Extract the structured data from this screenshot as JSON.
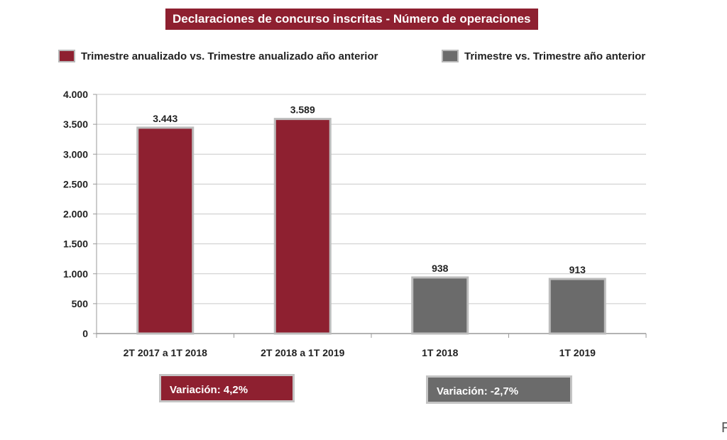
{
  "title": "Declaraciones de concurso inscritas - Número de operaciones",
  "colors": {
    "series_annual": "#8e2030",
    "series_quarter": "#6b6b6b",
    "title_bg": "#8e2030",
    "grid": "#c9c9c9",
    "axis": "#9a9a9a"
  },
  "legend": [
    {
      "label": "Trimestre anualizado vs. Trimestre anualizado año anterior",
      "color": "#8e2030"
    },
    {
      "label": "Trimestre vs. Trimestre año anterior",
      "color": "#6b6b6b"
    }
  ],
  "variations": [
    {
      "label": "Variación:  4,2%",
      "color": "#8e2030"
    },
    {
      "label": "Variación: -2,7%",
      "color": "#6b6b6b"
    }
  ],
  "edge_glyph": "F",
  "chart_data": {
    "type": "bar",
    "categories": [
      "2T 2017 a 1T 2018",
      "2T 2018 a 1T 2019",
      "1T 2018",
      "1T 2019"
    ],
    "values": [
      3443,
      3589,
      938,
      913
    ],
    "value_labels": [
      "3.443",
      "3.589",
      "938",
      "913"
    ],
    "bar_colors": [
      "#8e2030",
      "#8e2030",
      "#6b6b6b",
      "#6b6b6b"
    ],
    "ylim": [
      0,
      4000
    ],
    "yticks": [
      0,
      500,
      1000,
      1500,
      2000,
      2500,
      3000,
      3500,
      4000
    ],
    "ytick_labels": [
      "0",
      "500",
      "1.000",
      "1.500",
      "2.000",
      "2.500",
      "3.000",
      "3.500",
      "4.000"
    ],
    "grid": true,
    "legend_position": "top"
  }
}
